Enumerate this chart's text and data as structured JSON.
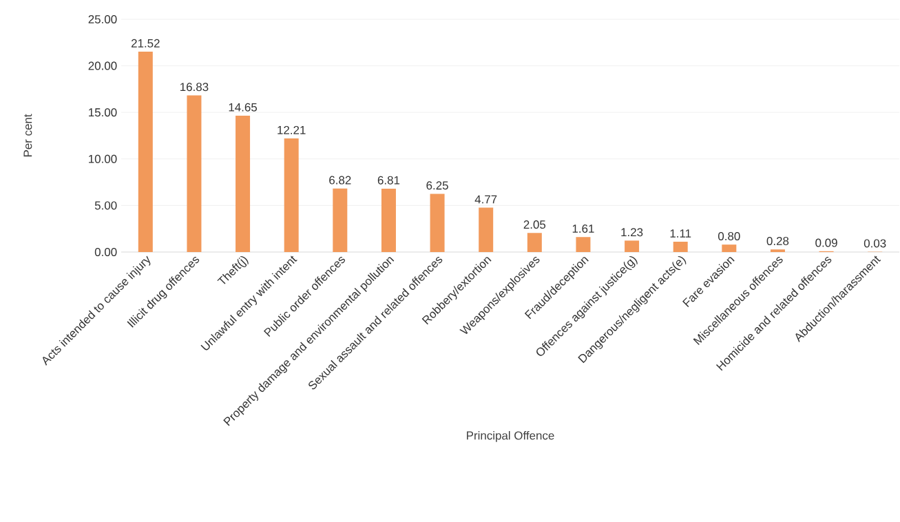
{
  "chart_data": {
    "type": "bar",
    "xlabel": "Principal Offence",
    "ylabel": "Per cent",
    "categories": [
      "Acts intended to cause injury",
      "Illicit drug offences",
      "Theft(j)",
      "Unlawful entry with intent",
      "Public order offences",
      "Property damage and environmental pollution",
      "Sexual assault and related offences",
      "Robbery/extortion",
      "Weapons/explosives",
      "Fraud/deception",
      "Offences against justice(g)",
      "Dangerous/negligent acts(e)",
      "Fare evasion",
      "Miscellaneous offences",
      "Homicide and related offences",
      "Abduction/harassment"
    ],
    "values": [
      21.52,
      16.83,
      14.65,
      12.21,
      6.82,
      6.81,
      6.25,
      4.77,
      2.05,
      1.61,
      1.23,
      1.11,
      0.8,
      0.28,
      0.09,
      0.03
    ],
    "value_labels": [
      "21.52",
      "16.83",
      "14.65",
      "12.21",
      "6.82",
      "6.81",
      "6.25",
      "4.77",
      "2.05",
      "1.61",
      "1.23",
      "1.11",
      "0.80",
      "0.28",
      "0.09",
      "0.03"
    ],
    "color": "#f2995a",
    "ylim": [
      0,
      25
    ],
    "yticks": [
      {
        "value": 0,
        "label": "0.00"
      },
      {
        "value": 5,
        "label": "5.00"
      },
      {
        "value": 10,
        "label": "10.00"
      },
      {
        "value": 15,
        "label": "15.00"
      },
      {
        "value": 20,
        "label": "20.00"
      },
      {
        "value": 25,
        "label": "25.00"
      }
    ],
    "grid": "y"
  }
}
